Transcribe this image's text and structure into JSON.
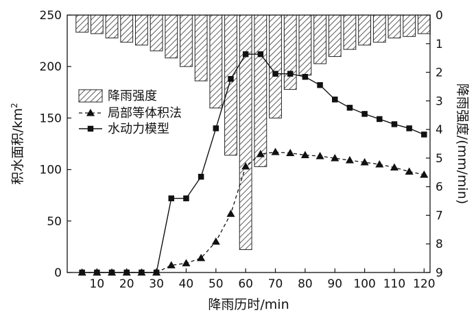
{
  "chart_data": {
    "type": "bar-line",
    "x": [
      5,
      10,
      15,
      20,
      25,
      30,
      35,
      40,
      45,
      50,
      55,
      60,
      65,
      70,
      75,
      80,
      85,
      90,
      95,
      100,
      105,
      110,
      115,
      120
    ],
    "series": [
      {
        "name": "降雨强度",
        "axis": "right",
        "type": "bar",
        "values": [
          0.6,
          0.65,
          0.8,
          0.95,
          1.05,
          1.25,
          1.5,
          1.8,
          2.3,
          3.25,
          4.9,
          8.2,
          5.3,
          3.6,
          2.6,
          2.1,
          1.7,
          1.45,
          1.2,
          1.05,
          0.95,
          0.8,
          0.75,
          0.65
        ]
      },
      {
        "name": "局部等体积法",
        "axis": "left",
        "type": "line-dashed",
        "marker": "triangle",
        "values": [
          0,
          0,
          0,
          0,
          0,
          0,
          7,
          9,
          14,
          30,
          57,
          103,
          115,
          117,
          116,
          114,
          113,
          111,
          109,
          107,
          105,
          102,
          98,
          95
        ]
      },
      {
        "name": "水动力模型",
        "axis": "left",
        "type": "line",
        "marker": "square",
        "values": [
          0,
          0,
          0,
          0,
          0,
          0,
          72,
          72,
          93,
          140,
          188,
          212,
          212,
          193,
          193,
          190,
          182,
          168,
          160,
          154,
          149,
          144,
          140,
          134
        ]
      }
    ],
    "xlabel": "降雨历时/min",
    "ylabel_left": "积水面积/km",
    "ylabel_left_sup": "2",
    "ylabel_right": "降雨强度/(mm/min)",
    "xlim": [
      0,
      122
    ],
    "ylim_left": [
      0,
      250
    ],
    "ylim_right": [
      0,
      9
    ],
    "right_axis_inverted": true,
    "xticks": [
      10,
      20,
      30,
      40,
      50,
      60,
      70,
      80,
      90,
      100,
      110,
      120
    ],
    "yticks_left": [
      0,
      50,
      100,
      150,
      200,
      250
    ],
    "yticks_right": [
      0,
      1,
      2,
      3,
      4,
      5,
      6,
      7,
      8,
      9
    ],
    "legend_position": "left-middle",
    "grid": false
  }
}
